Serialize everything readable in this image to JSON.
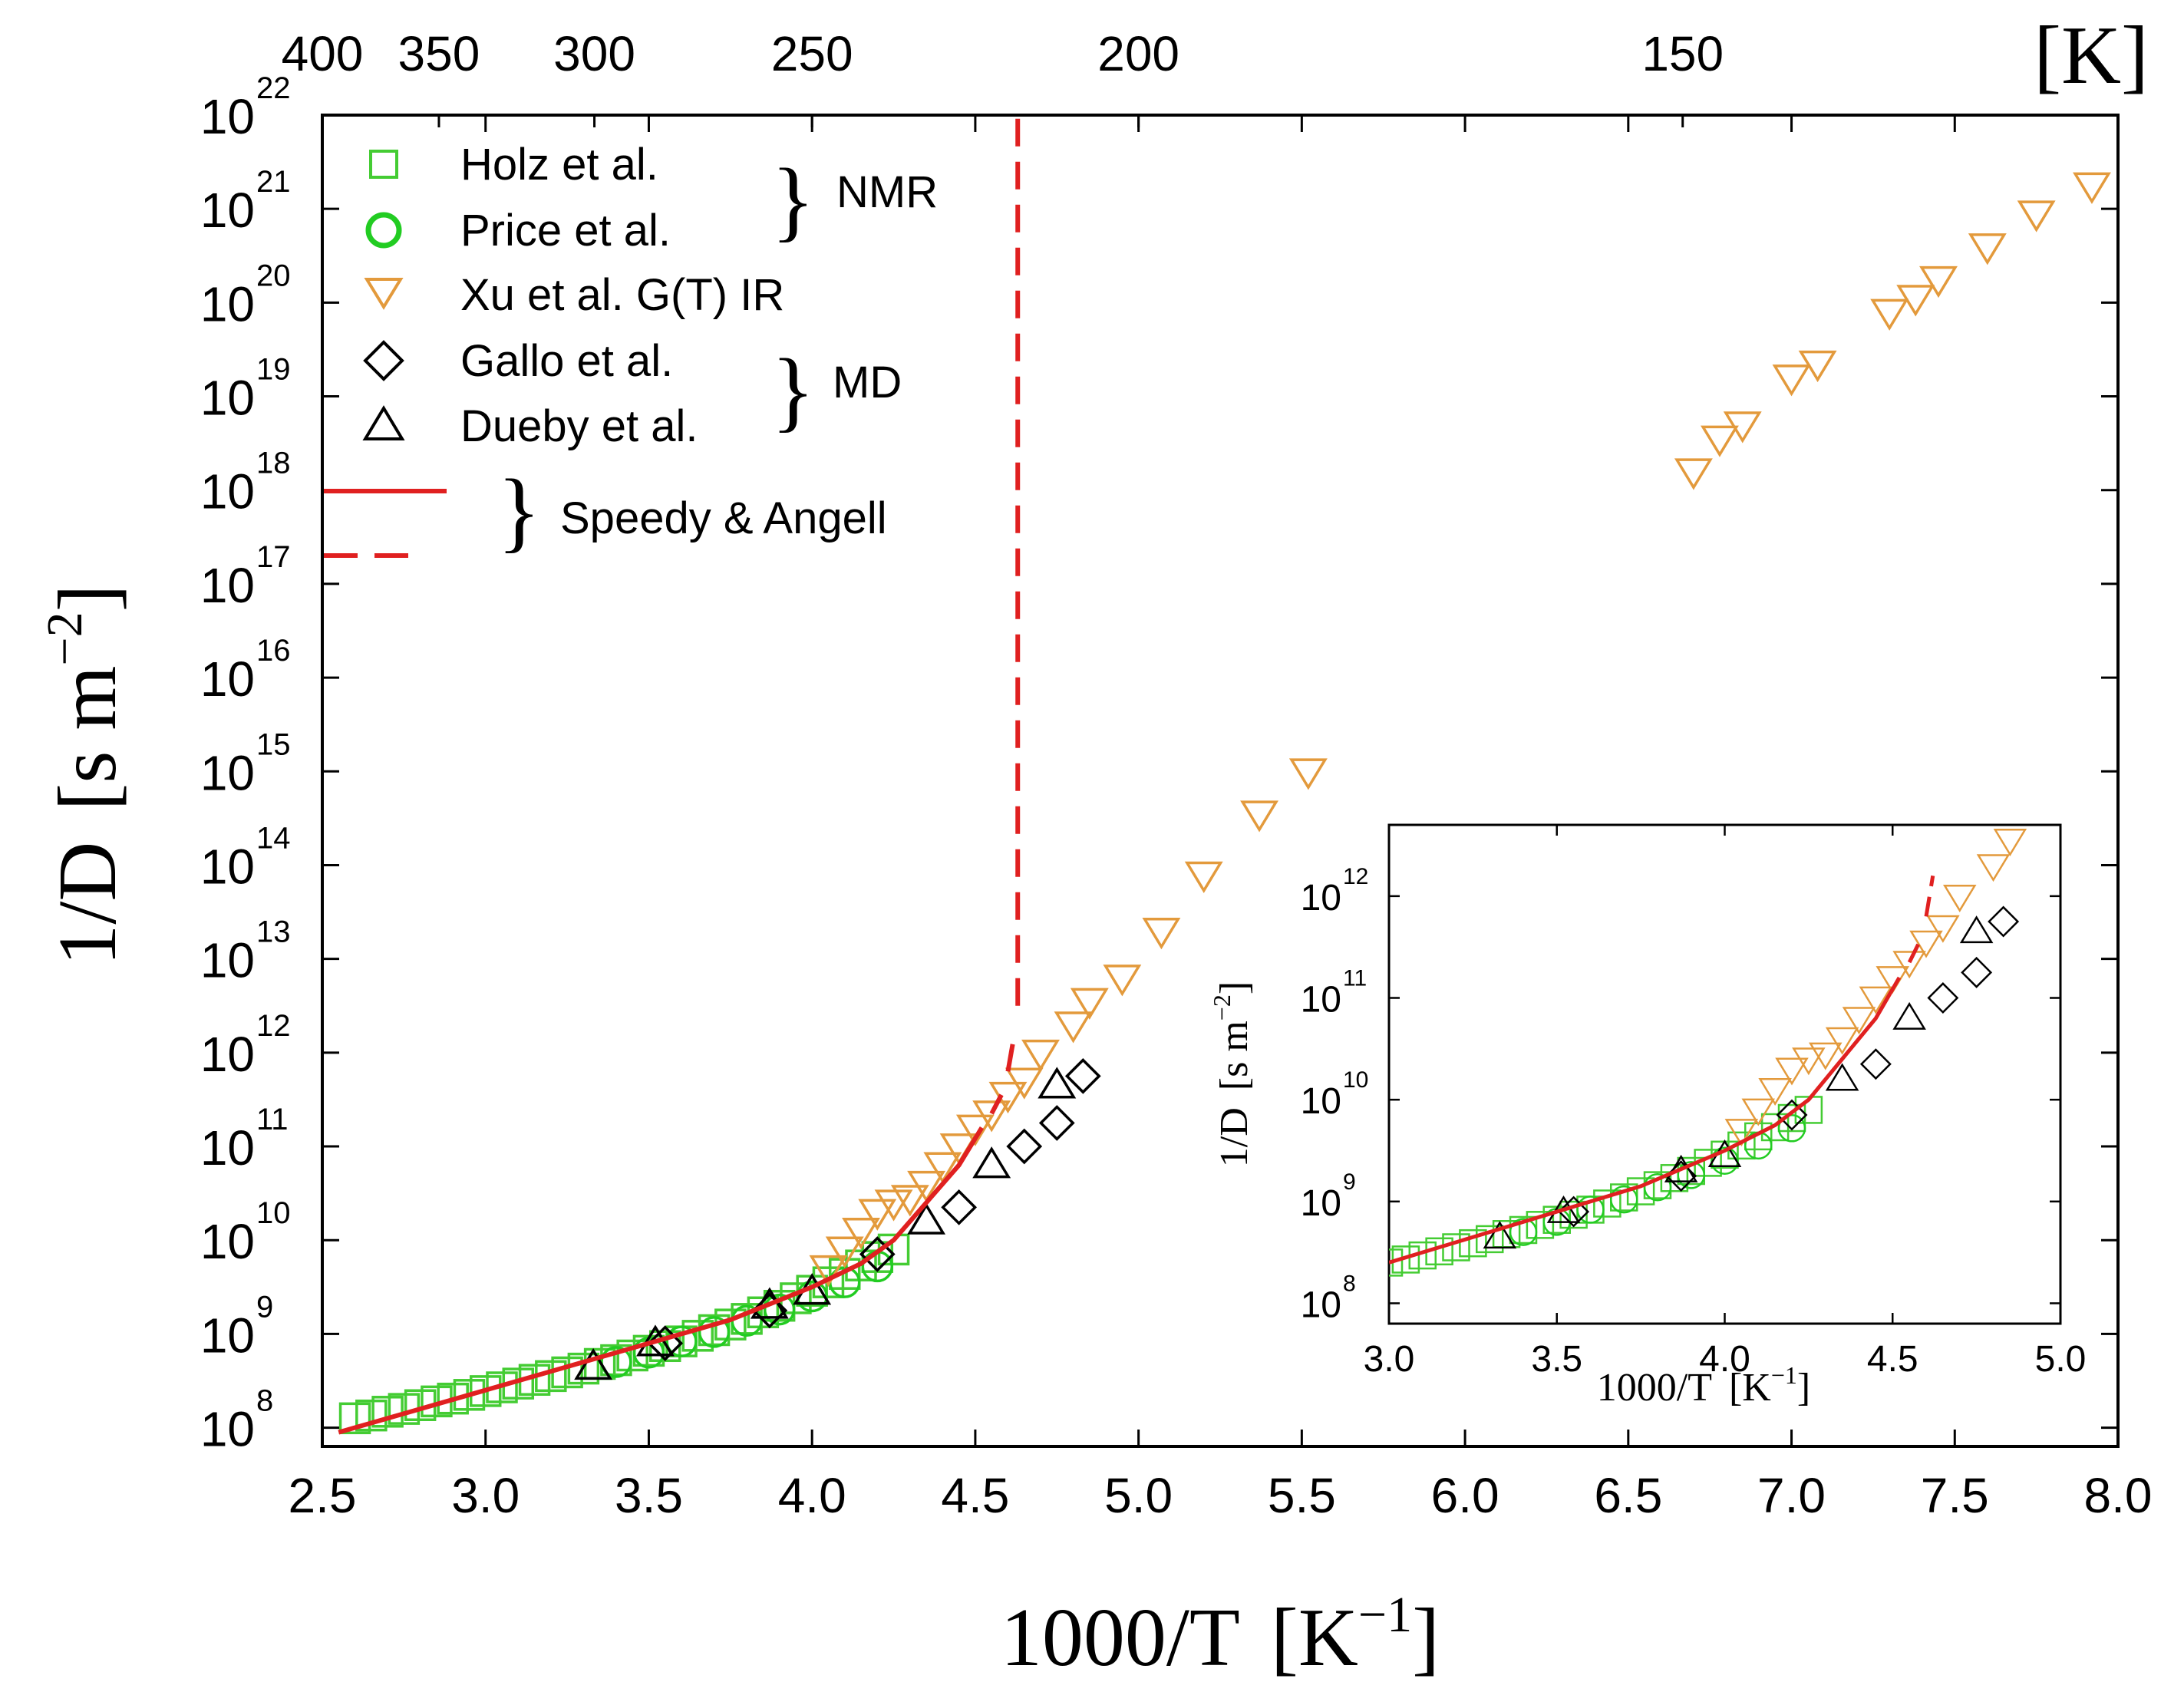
{
  "chart_data": [
    {
      "type": "scatter",
      "xlabel": "1000/T",
      "xlabel_unit": "[K",
      "xlabel_unit_exp": "−1",
      "xlabel_unit_close": "]",
      "ylabel": "1/D",
      "ylabel_unit": "[s m",
      "ylabel_unit_exp": "−2",
      "ylabel_unit_close": "]",
      "top_axis_unit": "[K]",
      "xlim": [
        2.5,
        8.0
      ],
      "ylim_log10": [
        7.8,
        22.0
      ],
      "y_scale": "log",
      "x_ticks": [
        "2.5",
        "3.0",
        "3.5",
        "4.0",
        "4.5",
        "5.0",
        "5.5",
        "6.0",
        "6.5",
        "7.0",
        "7.5",
        "8.0"
      ],
      "y_tick_exponents": [
        "8",
        "9",
        "10",
        "11",
        "12",
        "13",
        "14",
        "15",
        "16",
        "17",
        "18",
        "19",
        "20",
        "21",
        "22"
      ],
      "top_ticks": [
        "400",
        "350",
        "300",
        "250",
        "200",
        "150"
      ],
      "legend_position": "top-left",
      "legend": {
        "entries": [
          "Holz et al.",
          "Price et al.",
          "Xu et al. G(T) IR",
          "Gallo et al.",
          "Dueby et al."
        ],
        "group_labels": [
          "NMR",
          "MD",
          "Speedy & Angell"
        ]
      },
      "colors": {
        "holz": "#44cc33",
        "price": "#22cc22",
        "xu": "#e39a3c",
        "md": "#000000",
        "speedy": "#e02020"
      },
      "series": [
        {
          "name": "Holz et al.",
          "marker": "square",
          "x": [
            2.6,
            2.65,
            2.7,
            2.75,
            2.8,
            2.85,
            2.9,
            2.95,
            3.0,
            3.05,
            3.1,
            3.15,
            3.2,
            3.25,
            3.3,
            3.35,
            3.4,
            3.45,
            3.5,
            3.55,
            3.6,
            3.65,
            3.7,
            3.75,
            3.8,
            3.85,
            3.9,
            3.95,
            4.0,
            4.05,
            4.1,
            4.15,
            4.2,
            4.25
          ],
          "log10y": [
            8.1,
            8.13,
            8.17,
            8.2,
            8.24,
            8.28,
            8.31,
            8.35,
            8.39,
            8.43,
            8.47,
            8.51,
            8.55,
            8.59,
            8.63,
            8.68,
            8.72,
            8.77,
            8.82,
            8.87,
            8.92,
            8.98,
            9.04,
            9.1,
            9.16,
            9.23,
            9.3,
            9.38,
            9.46,
            9.55,
            9.64,
            9.73,
            9.82,
            9.9
          ]
        },
        {
          "name": "Price et al.",
          "marker": "circle",
          "x": [
            3.4,
            3.5,
            3.6,
            3.7,
            3.8,
            3.9,
            4.0,
            4.1,
            4.2
          ],
          "log10y": [
            8.7,
            8.8,
            8.92,
            9.02,
            9.14,
            9.26,
            9.4,
            9.55,
            9.72
          ]
        },
        {
          "name": "Xu et al. G(T) IR",
          "marker": "triangle-down",
          "x": [
            4.05,
            4.1,
            4.15,
            4.2,
            4.25,
            4.3,
            4.35,
            4.4,
            4.45,
            4.5,
            4.55,
            4.6,
            4.65,
            4.7,
            4.8,
            4.85,
            4.95,
            5.07,
            5.2,
            5.37,
            5.52,
            6.7,
            6.78,
            6.85,
            7.0,
            7.08,
            7.3,
            7.38,
            7.45,
            7.6,
            7.75,
            7.92
          ],
          "log10y": [
            9.7,
            9.9,
            10.1,
            10.3,
            10.4,
            10.45,
            10.6,
            10.8,
            11.0,
            11.2,
            11.35,
            11.55,
            11.7,
            12.0,
            12.3,
            12.55,
            12.8,
            13.3,
            13.9,
            14.55,
            15.0,
            18.2,
            18.55,
            18.7,
            19.2,
            19.35,
            19.9,
            20.05,
            20.25,
            20.6,
            20.95,
            21.25
          ]
        },
        {
          "name": "Gallo et al.",
          "marker": "diamond",
          "x": [
            3.55,
            3.87,
            4.2,
            4.45,
            4.65,
            4.75,
            4.83
          ],
          "log10y": [
            8.9,
            9.25,
            9.85,
            10.35,
            11.0,
            11.25,
            11.75
          ]
        },
        {
          "name": "Dueby et al.",
          "marker": "triangle-up",
          "x": [
            3.33,
            3.52,
            3.87,
            4.0,
            4.35,
            4.55,
            4.75
          ],
          "log10y": [
            8.65,
            8.9,
            9.3,
            9.45,
            10.2,
            10.8,
            11.65
          ]
        },
        {
          "name": "Speedy & Angell",
          "style": "solid",
          "x": [
            2.55,
            2.75,
            3.0,
            3.25,
            3.5,
            3.75,
            4.0,
            4.15,
            4.25,
            4.35,
            4.45,
            4.52
          ],
          "log10y": [
            7.95,
            8.15,
            8.4,
            8.65,
            8.9,
            9.15,
            9.5,
            9.75,
            10.0,
            10.4,
            10.8,
            11.2
          ]
        },
        {
          "name": "Speedy & Angell (dashed)",
          "style": "dashed",
          "segments": [
            {
              "x": [
                4.55,
                4.58
              ],
              "log10y": [
                11.35,
                11.55
              ]
            },
            {
              "x": [
                4.6,
                4.62
              ],
              "log10y": [
                11.8,
                12.2
              ]
            },
            {
              "x": [
                4.63,
                4.63
              ],
              "log10y": [
                12.5,
                22.0
              ]
            }
          ]
        }
      ]
    },
    {
      "type": "scatter",
      "inset": true,
      "xlabel": "1000/T",
      "xlabel_unit": "[K",
      "xlabel_unit_exp": "−1",
      "xlabel_unit_close": "]",
      "ylabel": "1/D",
      "ylabel_unit": "[s m",
      "ylabel_unit_exp": "−2",
      "ylabel_unit_close": "]",
      "xlim": [
        3.0,
        5.0
      ],
      "ylim_log10": [
        7.8,
        12.7
      ],
      "y_scale": "log",
      "x_ticks": [
        "3.0",
        "3.5",
        "4.0",
        "4.5",
        "5.0"
      ],
      "y_tick_exponents": [
        "8",
        "9",
        "10",
        "11",
        "12"
      ],
      "series": [
        {
          "name": "Holz et al.",
          "marker": "square",
          "x": [
            3.0,
            3.05,
            3.1,
            3.15,
            3.2,
            3.25,
            3.3,
            3.35,
            3.4,
            3.45,
            3.5,
            3.55,
            3.6,
            3.65,
            3.7,
            3.75,
            3.8,
            3.85,
            3.9,
            3.95,
            4.0,
            4.05,
            4.1,
            4.15,
            4.2,
            4.25
          ],
          "log10y": [
            8.4,
            8.43,
            8.47,
            8.51,
            8.55,
            8.59,
            8.63,
            8.68,
            8.72,
            8.77,
            8.82,
            8.87,
            8.92,
            8.98,
            9.04,
            9.1,
            9.16,
            9.23,
            9.3,
            9.38,
            9.46,
            9.55,
            9.64,
            9.73,
            9.82,
            9.9
          ]
        },
        {
          "name": "Price et al.",
          "marker": "circle",
          "x": [
            3.4,
            3.5,
            3.6,
            3.7,
            3.8,
            3.9,
            4.0,
            4.1,
            4.2
          ],
          "log10y": [
            8.7,
            8.8,
            8.92,
            9.02,
            9.14,
            9.26,
            9.4,
            9.55,
            9.72
          ]
        },
        {
          "name": "Xu et al. G(T) IR",
          "marker": "triangle-down",
          "x": [
            4.05,
            4.1,
            4.15,
            4.2,
            4.25,
            4.3,
            4.35,
            4.4,
            4.45,
            4.5,
            4.55,
            4.6,
            4.65,
            4.7,
            4.8,
            4.85
          ],
          "log10y": [
            9.7,
            9.9,
            10.1,
            10.3,
            10.4,
            10.45,
            10.6,
            10.8,
            11.0,
            11.2,
            11.35,
            11.55,
            11.7,
            12.0,
            12.3,
            12.55
          ]
        },
        {
          "name": "Gallo et al.",
          "marker": "diamond",
          "x": [
            3.55,
            3.87,
            4.2,
            4.45,
            4.65,
            4.75,
            4.83
          ],
          "log10y": [
            8.9,
            9.25,
            9.85,
            10.35,
            11.0,
            11.25,
            11.75
          ]
        },
        {
          "name": "Dueby et al.",
          "marker": "triangle-up",
          "x": [
            3.33,
            3.52,
            3.87,
            4.0,
            4.35,
            4.55,
            4.75
          ],
          "log10y": [
            8.65,
            8.9,
            9.3,
            9.45,
            10.2,
            10.8,
            11.65
          ]
        },
        {
          "name": "Speedy & Angell",
          "style": "solid",
          "x": [
            3.0,
            3.25,
            3.5,
            3.75,
            4.0,
            4.15,
            4.25,
            4.35,
            4.45,
            4.52
          ],
          "log10y": [
            8.4,
            8.65,
            8.9,
            9.15,
            9.5,
            9.75,
            10.0,
            10.4,
            10.8,
            11.2
          ]
        },
        {
          "name": "Speedy & Angell (dashed)",
          "style": "dashed",
          "segments": [
            {
              "x": [
                4.55,
                4.58
              ],
              "log10y": [
                11.35,
                11.55
              ]
            },
            {
              "x": [
                4.6,
                4.62
              ],
              "log10y": [
                11.8,
                12.2
              ]
            }
          ]
        }
      ]
    }
  ]
}
